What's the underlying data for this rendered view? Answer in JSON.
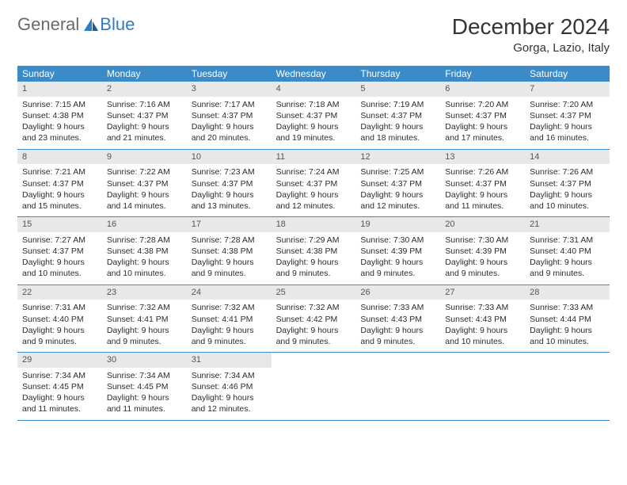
{
  "brand": {
    "word1": "General",
    "word2": "Blue"
  },
  "title": "December 2024",
  "location": "Gorga, Lazio, Italy",
  "colors": {
    "header_bg": "#3b8bc9",
    "header_text": "#ffffff",
    "daynum_bg": "#e8e8e8",
    "row_border": "#3b8bc9",
    "body_text": "#2c2c2c",
    "logo_gray": "#6a6a6a",
    "logo_blue": "#2f7ec2"
  },
  "weekdays": [
    "Sunday",
    "Monday",
    "Tuesday",
    "Wednesday",
    "Thursday",
    "Friday",
    "Saturday"
  ],
  "weeks": [
    [
      {
        "n": "1",
        "sr": "Sunrise: 7:15 AM",
        "ss": "Sunset: 4:38 PM",
        "dl": "Daylight: 9 hours and 23 minutes."
      },
      {
        "n": "2",
        "sr": "Sunrise: 7:16 AM",
        "ss": "Sunset: 4:37 PM",
        "dl": "Daylight: 9 hours and 21 minutes."
      },
      {
        "n": "3",
        "sr": "Sunrise: 7:17 AM",
        "ss": "Sunset: 4:37 PM",
        "dl": "Daylight: 9 hours and 20 minutes."
      },
      {
        "n": "4",
        "sr": "Sunrise: 7:18 AM",
        "ss": "Sunset: 4:37 PM",
        "dl": "Daylight: 9 hours and 19 minutes."
      },
      {
        "n": "5",
        "sr": "Sunrise: 7:19 AM",
        "ss": "Sunset: 4:37 PM",
        "dl": "Daylight: 9 hours and 18 minutes."
      },
      {
        "n": "6",
        "sr": "Sunrise: 7:20 AM",
        "ss": "Sunset: 4:37 PM",
        "dl": "Daylight: 9 hours and 17 minutes."
      },
      {
        "n": "7",
        "sr": "Sunrise: 7:20 AM",
        "ss": "Sunset: 4:37 PM",
        "dl": "Daylight: 9 hours and 16 minutes."
      }
    ],
    [
      {
        "n": "8",
        "sr": "Sunrise: 7:21 AM",
        "ss": "Sunset: 4:37 PM",
        "dl": "Daylight: 9 hours and 15 minutes."
      },
      {
        "n": "9",
        "sr": "Sunrise: 7:22 AM",
        "ss": "Sunset: 4:37 PM",
        "dl": "Daylight: 9 hours and 14 minutes."
      },
      {
        "n": "10",
        "sr": "Sunrise: 7:23 AM",
        "ss": "Sunset: 4:37 PM",
        "dl": "Daylight: 9 hours and 13 minutes."
      },
      {
        "n": "11",
        "sr": "Sunrise: 7:24 AM",
        "ss": "Sunset: 4:37 PM",
        "dl": "Daylight: 9 hours and 12 minutes."
      },
      {
        "n": "12",
        "sr": "Sunrise: 7:25 AM",
        "ss": "Sunset: 4:37 PM",
        "dl": "Daylight: 9 hours and 12 minutes."
      },
      {
        "n": "13",
        "sr": "Sunrise: 7:26 AM",
        "ss": "Sunset: 4:37 PM",
        "dl": "Daylight: 9 hours and 11 minutes."
      },
      {
        "n": "14",
        "sr": "Sunrise: 7:26 AM",
        "ss": "Sunset: 4:37 PM",
        "dl": "Daylight: 9 hours and 10 minutes."
      }
    ],
    [
      {
        "n": "15",
        "sr": "Sunrise: 7:27 AM",
        "ss": "Sunset: 4:37 PM",
        "dl": "Daylight: 9 hours and 10 minutes."
      },
      {
        "n": "16",
        "sr": "Sunrise: 7:28 AM",
        "ss": "Sunset: 4:38 PM",
        "dl": "Daylight: 9 hours and 10 minutes."
      },
      {
        "n": "17",
        "sr": "Sunrise: 7:28 AM",
        "ss": "Sunset: 4:38 PM",
        "dl": "Daylight: 9 hours and 9 minutes."
      },
      {
        "n": "18",
        "sr": "Sunrise: 7:29 AM",
        "ss": "Sunset: 4:38 PM",
        "dl": "Daylight: 9 hours and 9 minutes."
      },
      {
        "n": "19",
        "sr": "Sunrise: 7:30 AM",
        "ss": "Sunset: 4:39 PM",
        "dl": "Daylight: 9 hours and 9 minutes."
      },
      {
        "n": "20",
        "sr": "Sunrise: 7:30 AM",
        "ss": "Sunset: 4:39 PM",
        "dl": "Daylight: 9 hours and 9 minutes."
      },
      {
        "n": "21",
        "sr": "Sunrise: 7:31 AM",
        "ss": "Sunset: 4:40 PM",
        "dl": "Daylight: 9 hours and 9 minutes."
      }
    ],
    [
      {
        "n": "22",
        "sr": "Sunrise: 7:31 AM",
        "ss": "Sunset: 4:40 PM",
        "dl": "Daylight: 9 hours and 9 minutes."
      },
      {
        "n": "23",
        "sr": "Sunrise: 7:32 AM",
        "ss": "Sunset: 4:41 PM",
        "dl": "Daylight: 9 hours and 9 minutes."
      },
      {
        "n": "24",
        "sr": "Sunrise: 7:32 AM",
        "ss": "Sunset: 4:41 PM",
        "dl": "Daylight: 9 hours and 9 minutes."
      },
      {
        "n": "25",
        "sr": "Sunrise: 7:32 AM",
        "ss": "Sunset: 4:42 PM",
        "dl": "Daylight: 9 hours and 9 minutes."
      },
      {
        "n": "26",
        "sr": "Sunrise: 7:33 AM",
        "ss": "Sunset: 4:43 PM",
        "dl": "Daylight: 9 hours and 9 minutes."
      },
      {
        "n": "27",
        "sr": "Sunrise: 7:33 AM",
        "ss": "Sunset: 4:43 PM",
        "dl": "Daylight: 9 hours and 10 minutes."
      },
      {
        "n": "28",
        "sr": "Sunrise: 7:33 AM",
        "ss": "Sunset: 4:44 PM",
        "dl": "Daylight: 9 hours and 10 minutes."
      }
    ],
    [
      {
        "n": "29",
        "sr": "Sunrise: 7:34 AM",
        "ss": "Sunset: 4:45 PM",
        "dl": "Daylight: 9 hours and 11 minutes."
      },
      {
        "n": "30",
        "sr": "Sunrise: 7:34 AM",
        "ss": "Sunset: 4:45 PM",
        "dl": "Daylight: 9 hours and 11 minutes."
      },
      {
        "n": "31",
        "sr": "Sunrise: 7:34 AM",
        "ss": "Sunset: 4:46 PM",
        "dl": "Daylight: 9 hours and 12 minutes."
      },
      null,
      null,
      null,
      null
    ]
  ]
}
